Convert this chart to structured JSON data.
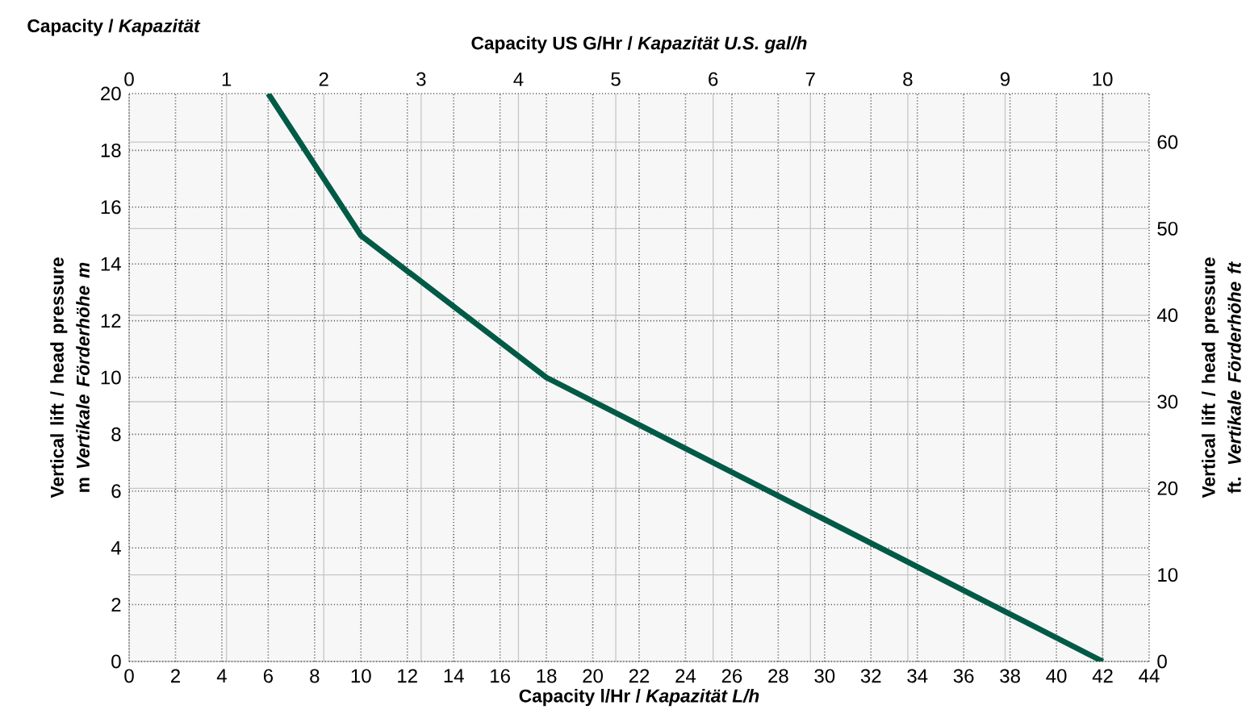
{
  "chart_data": {
    "type": "line",
    "xlabel": "Capacity l/Hr / *Kapazität L/h*",
    "ylabel": "Vertical lift / head pressure m *Vertikale Förderhöhe m*",
    "x2label": "Capacity US G/Hr / *Kapazität U.S. gal/h*",
    "y2label": "Vertical lift / head pressure ft. *Vertikale Förderhöhe ft*",
    "annotations": [
      "Capacity / *Kapazität*"
    ],
    "xlim": [
      0,
      44
    ],
    "xticks": [
      0,
      2,
      4,
      6,
      8,
      10,
      12,
      14,
      16,
      18,
      20,
      22,
      24,
      26,
      28,
      30,
      32,
      34,
      36,
      38,
      40,
      42,
      44
    ],
    "ylim": [
      0,
      20
    ],
    "yticks": [
      0,
      2,
      4,
      6,
      8,
      10,
      12,
      14,
      16,
      18,
      20
    ],
    "x2lim": [
      0,
      10.48
    ],
    "x2ticks": [
      0,
      1,
      2,
      3,
      4,
      5,
      6,
      7,
      8,
      9,
      10
    ],
    "y2lim": [
      0,
      65.6
    ],
    "y2ticks": [
      0,
      10,
      20,
      30,
      40,
      50,
      60
    ],
    "grid": true,
    "series": [
      {
        "color": "#005a46",
        "x": [
          6,
          10,
          18,
          42
        ],
        "values": [
          20,
          15,
          10,
          0
        ]
      }
    ]
  }
}
